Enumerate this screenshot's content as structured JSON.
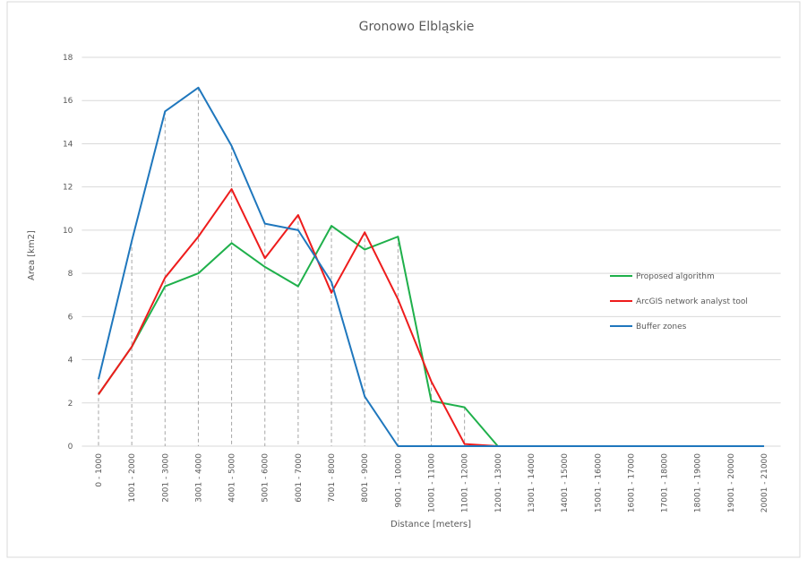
{
  "chart_data": {
    "type": "line",
    "title": "Gronowo Elbląskie",
    "x_label": "Distance [meters]",
    "y_label": "Area [km2]",
    "categories": [
      "0 - 1000",
      "1001 - 2000",
      "2001 - 3000",
      "3001 - 4000",
      "4001 - 5000",
      "5001 - 6000",
      "6001 - 7000",
      "7001 - 8000",
      "8001 - 9000",
      "9001 - 10000",
      "10001 - 11000",
      "11001 - 12000",
      "12001 - 13000",
      "13001 - 14000",
      "14001 - 15000",
      "15001 - 16000",
      "16001 - 17000",
      "17001 - 18000",
      "18001 - 19000",
      "19001 - 20000",
      "20001 - 21000"
    ],
    "series": [
      {
        "name": "Proposed algorithm",
        "color": "#1fb04b",
        "values": [
          2.4,
          4.6,
          7.4,
          8.0,
          9.4,
          8.3,
          7.4,
          10.2,
          9.1,
          9.7,
          2.1,
          1.8,
          0,
          0,
          0,
          0,
          0,
          0,
          0,
          0,
          0
        ]
      },
      {
        "name": "ArcGIS network analyst tool",
        "color": "#ee1c1c",
        "values": [
          2.4,
          4.6,
          7.8,
          9.7,
          11.9,
          8.7,
          10.7,
          7.1,
          9.9,
          6.8,
          3.0,
          0.1,
          0,
          0,
          0,
          0,
          0,
          0,
          0,
          0,
          0
        ]
      },
      {
        "name": "Buffer zones",
        "color": "#1f77bd",
        "values": [
          3.1,
          9.5,
          15.5,
          16.6,
          13.9,
          10.3,
          10.0,
          7.6,
          2.3,
          0,
          0,
          0,
          0,
          0,
          0,
          0,
          0,
          0,
          0,
          0,
          0
        ]
      }
    ],
    "ylim": [
      0,
      18
    ],
    "yticks": [
      0,
      2,
      4,
      6,
      8,
      10,
      12,
      14,
      16,
      18
    ],
    "grid": true,
    "drop_lines": true,
    "legend": "right"
  }
}
